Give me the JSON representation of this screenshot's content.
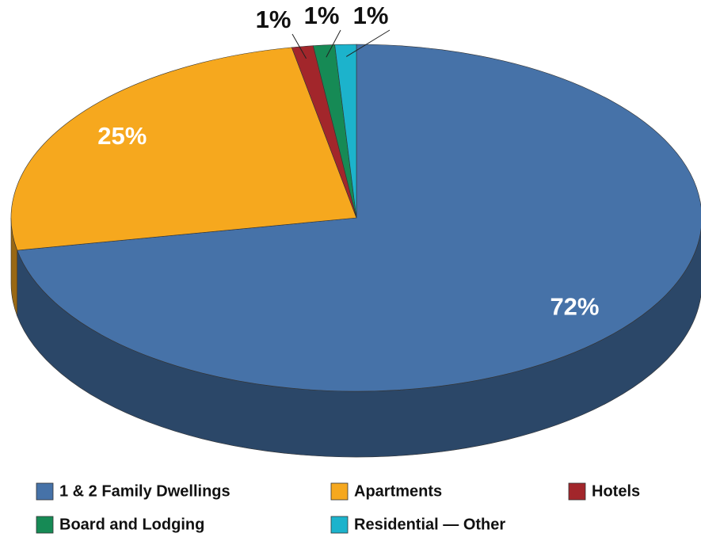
{
  "chart_data": {
    "type": "pie",
    "categories": [
      "1 & 2 Family Dwellings",
      "Apartments",
      "Hotels",
      "Board and Lodging",
      "Residential — Other"
    ],
    "values": [
      72,
      25,
      1,
      1,
      1
    ],
    "value_labels": [
      "72%",
      "25%",
      "1%",
      "1%",
      "1%"
    ],
    "colors": [
      "#4672a8",
      "#f6a81e",
      "#a2262b",
      "#168a55",
      "#1cb3cc"
    ],
    "legend": "bottom"
  }
}
